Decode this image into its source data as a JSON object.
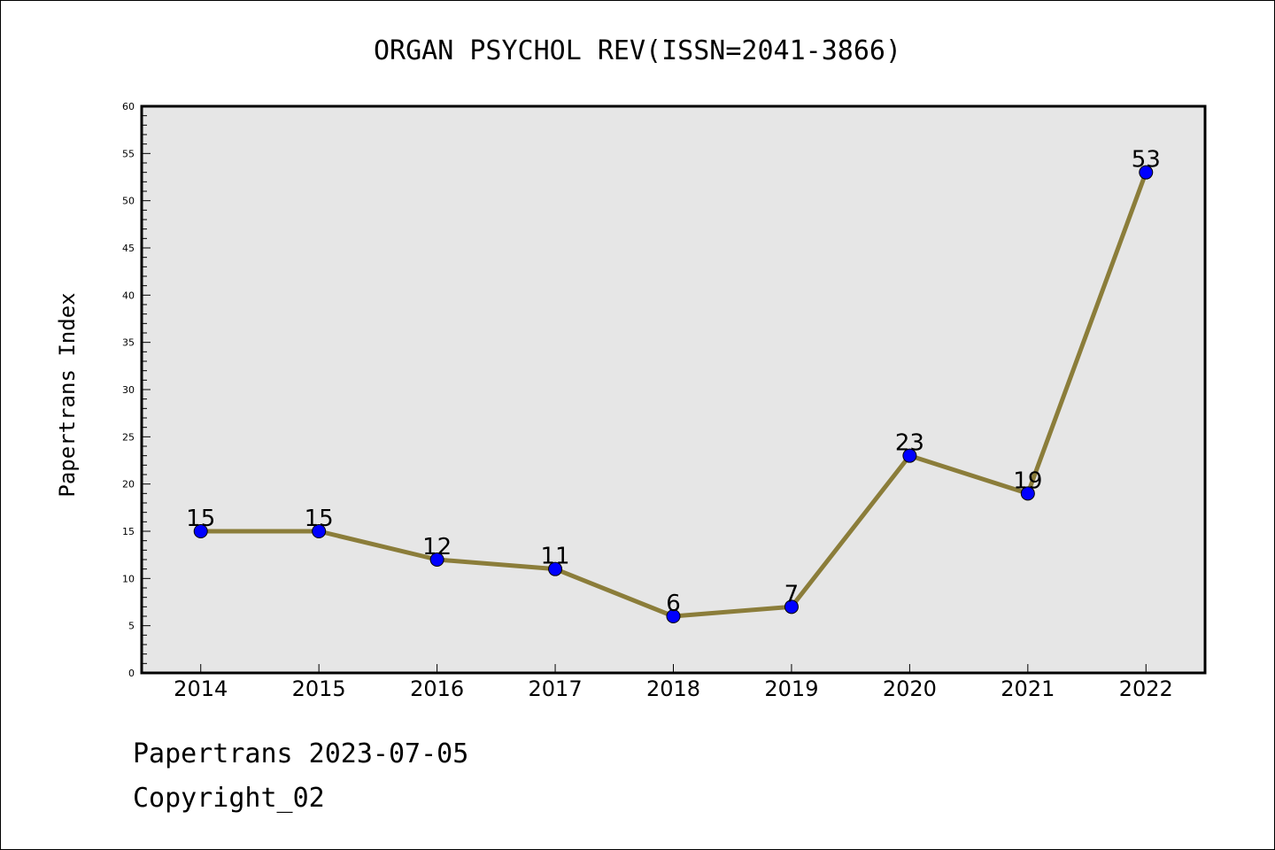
{
  "chart_data": {
    "type": "line",
    "title": "ORGAN PSYCHOL REV(ISSN=2041-3866)",
    "ylabel": "Papertrans Index",
    "xlabel": "",
    "categories": [
      "2014",
      "2015",
      "2016",
      "2017",
      "2018",
      "2019",
      "2020",
      "2021",
      "2022"
    ],
    "values": [
      15,
      15,
      12,
      11,
      6,
      7,
      23,
      19,
      53
    ],
    "data_labels": [
      "15",
      "15",
      "12",
      "11",
      "6",
      "7",
      "23",
      "19",
      "53"
    ],
    "ylim": [
      0,
      60
    ],
    "yticks": [
      "0",
      "5",
      "10",
      "15",
      "20",
      "25",
      "30",
      "35",
      "40",
      "45",
      "50",
      "55",
      "60"
    ],
    "grid": false,
    "line_color": "#8b7d3a",
    "marker_color": "#0000ff",
    "plot_background": "#e6e6e6"
  },
  "footer": {
    "line1": "Papertrans 2023-07-05",
    "line2": "Copyright_02"
  }
}
